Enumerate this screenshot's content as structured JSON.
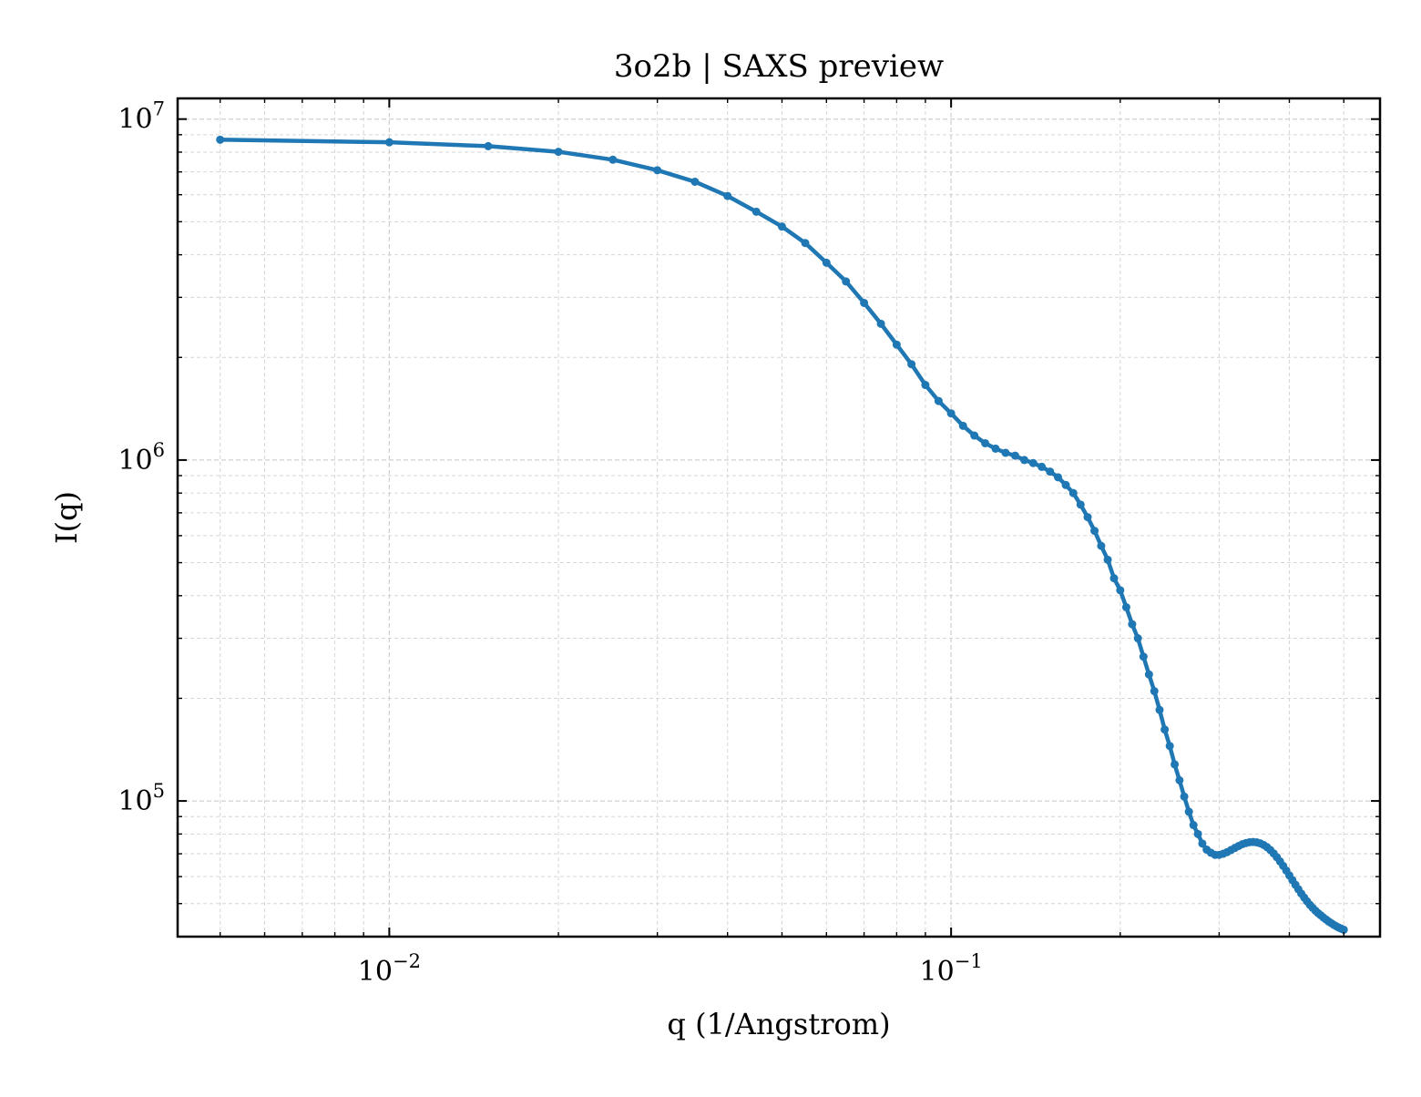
{
  "chart_data": {
    "type": "line",
    "title": "3o2b | SAXS preview",
    "xlabel": "q (1/Angstrom)",
    "ylabel": "I(q)",
    "xscale": "log",
    "yscale": "log",
    "xlim": [
      0.0042,
      0.58
    ],
    "ylim": [
      40000,
      11500000
    ],
    "grid": true,
    "grid_style": "dashed, major and minor",
    "legend": "none",
    "marker": "small filled circles",
    "color": "#1f77b4",
    "x_ticks": [
      {
        "base": "10",
        "exp": "−2",
        "value": 0.01
      },
      {
        "base": "10",
        "exp": "−1",
        "value": 0.1
      }
    ],
    "y_ticks": [
      {
        "base": "10",
        "exp": "5",
        "value": 100000
      },
      {
        "base": "10",
        "exp": "6",
        "value": 1000000
      },
      {
        "base": "10",
        "exp": "7",
        "value": 10000000
      }
    ],
    "series": [
      {
        "color": "#1f77b4",
        "points": [
          [
            0.005,
            8700000
          ],
          [
            0.01,
            8550000
          ],
          [
            0.015,
            8330000
          ],
          [
            0.02,
            8020000
          ],
          [
            0.025,
            7600000
          ],
          [
            0.03,
            7080000
          ],
          [
            0.035,
            6550000
          ],
          [
            0.04,
            5950000
          ],
          [
            0.045,
            5350000
          ],
          [
            0.05,
            4840000
          ],
          [
            0.055,
            4330000
          ],
          [
            0.06,
            3790000
          ],
          [
            0.065,
            3340000
          ],
          [
            0.07,
            2890000
          ],
          [
            0.075,
            2510000
          ],
          [
            0.08,
            2180000
          ],
          [
            0.085,
            1910000
          ],
          [
            0.09,
            1660000
          ],
          [
            0.095,
            1490000
          ],
          [
            0.1,
            1370000
          ],
          [
            0.105,
            1260000
          ],
          [
            0.11,
            1180000
          ],
          [
            0.115,
            1120000
          ],
          [
            0.12,
            1080000
          ],
          [
            0.125,
            1050000
          ],
          [
            0.13,
            1030000
          ],
          [
            0.135,
            1000000
          ],
          [
            0.14,
            980000
          ],
          [
            0.145,
            955000
          ],
          [
            0.15,
            925000
          ],
          [
            0.155,
            890000
          ],
          [
            0.16,
            845000
          ],
          [
            0.165,
            800000
          ],
          [
            0.17,
            740000
          ],
          [
            0.175,
            680000
          ],
          [
            0.18,
            620000
          ],
          [
            0.185,
            560000
          ],
          [
            0.19,
            510000
          ],
          [
            0.195,
            450000
          ],
          [
            0.2,
            415000
          ],
          [
            0.205,
            370000
          ],
          [
            0.21,
            330000
          ],
          [
            0.215,
            300000
          ],
          [
            0.22,
            265000
          ],
          [
            0.225,
            235000
          ],
          [
            0.23,
            210000
          ],
          [
            0.235,
            185000
          ],
          [
            0.24,
            162000
          ],
          [
            0.245,
            145000
          ],
          [
            0.25,
            128000
          ],
          [
            0.255,
            115000
          ],
          [
            0.26,
            103000
          ],
          [
            0.265,
            93000
          ],
          [
            0.27,
            85000
          ],
          [
            0.275,
            80000
          ],
          [
            0.28,
            75000
          ],
          [
            0.285,
            72000
          ],
          [
            0.29,
            70500
          ],
          [
            0.295,
            69500
          ],
          [
            0.3,
            69500
          ],
          [
            0.305,
            70000
          ],
          [
            0.31,
            70800
          ],
          [
            0.315,
            71800
          ],
          [
            0.32,
            72800
          ],
          [
            0.325,
            73800
          ],
          [
            0.33,
            74700
          ],
          [
            0.335,
            75300
          ],
          [
            0.34,
            75700
          ],
          [
            0.345,
            75800
          ],
          [
            0.35,
            75600
          ],
          [
            0.355,
            75100
          ],
          [
            0.36,
            74300
          ],
          [
            0.365,
            73200
          ],
          [
            0.37,
            71800
          ],
          [
            0.375,
            70200
          ],
          [
            0.38,
            68400
          ],
          [
            0.385,
            66500
          ],
          [
            0.39,
            64500
          ],
          [
            0.395,
            62500
          ],
          [
            0.4,
            60500
          ],
          [
            0.405,
            58600
          ],
          [
            0.41,
            56800
          ],
          [
            0.415,
            55100
          ],
          [
            0.42,
            53500
          ],
          [
            0.425,
            52100
          ],
          [
            0.43,
            50800
          ],
          [
            0.435,
            49600
          ],
          [
            0.44,
            48600
          ],
          [
            0.445,
            47700
          ],
          [
            0.45,
            46900
          ],
          [
            0.455,
            46200
          ],
          [
            0.46,
            45500
          ],
          [
            0.465,
            44900
          ],
          [
            0.47,
            44300
          ],
          [
            0.475,
            43800
          ],
          [
            0.48,
            43300
          ],
          [
            0.485,
            42900
          ],
          [
            0.49,
            42500
          ],
          [
            0.495,
            42200
          ],
          [
            0.5,
            41900
          ]
        ]
      }
    ]
  }
}
